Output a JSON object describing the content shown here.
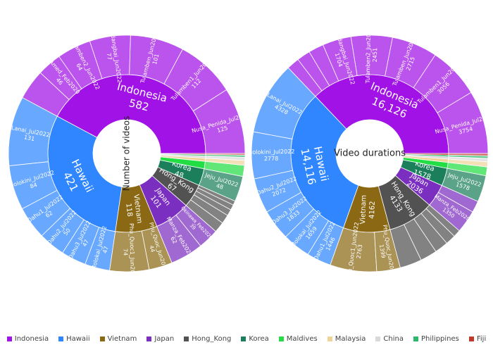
{
  "chart_data": [
    {
      "type": "sunburst",
      "center_label": "Number of videos",
      "countries": [
        {
          "name": "Indonesia",
          "value": 582,
          "value_label": "582",
          "children": [
            {
              "name": "Nusa_Penida_Jul2022",
              "value": 125
            },
            {
              "name": "Tulamben1_Jun2022",
              "value": 112
            },
            {
              "name": "Tulamben_Jun2022",
              "value": 101
            },
            {
              "name": "Padangbai_Jun2022",
              "value": 77
            },
            {
              "name": "Tulamben2_Jun2022",
              "value": 64
            },
            {
              "name": "Amed_Feb2020",
              "value": 46
            },
            {
              "name": "",
              "value": 57
            }
          ]
        },
        {
          "name": "Hawaii",
          "value": 421,
          "value_label": "421",
          "children": [
            {
              "name": "Lanai_Jul2022",
              "value": 131
            },
            {
              "name": "Molokini_Jul2022",
              "value": 84
            },
            {
              "name": "Oahu1_Jul2022",
              "value": 62
            },
            {
              "name": "Oahu2_Jul2022",
              "value": 50
            },
            {
              "name": "Oahu3_Jul2022",
              "value": 47
            },
            {
              "name": "Molokai_Jul2022",
              "value": 47
            }
          ]
        },
        {
          "name": "Vietnam",
          "value": 118,
          "value_label": "118",
          "children": [
            {
              "name": "Phu_Quoc1_Jun2022",
              "value": 74
            },
            {
              "name": "Phu_Quoc_Jun2022",
              "value": 44
            }
          ]
        },
        {
          "name": "Japan",
          "value": 101,
          "value_label": "101",
          "children": [
            {
              "name": "Manza_Feb2020",
              "value": 62
            },
            {
              "name": "Okinawa_Feb2020",
              "value": 39
            }
          ]
        },
        {
          "name": "Hong_Kong",
          "value": 67,
          "value_label": "67",
          "children": [
            {
              "name": "",
              "value": 20
            },
            {
              "name": "",
              "value": 17
            },
            {
              "name": "",
              "value": 12
            },
            {
              "name": "",
              "value": 10
            },
            {
              "name": "",
              "value": 8
            }
          ]
        },
        {
          "name": "Korea",
          "value": 48,
          "value_label": "48",
          "children": [
            {
              "name": "Jeju_Jul2022",
              "value": 48
            }
          ]
        },
        {
          "name": "Maldives",
          "value": 21,
          "value_label": "",
          "children": [
            {
              "name": "Maldives_Dec2019",
              "value": 21
            }
          ]
        },
        {
          "name": "Malaysia",
          "value": 9,
          "value_label": "",
          "children": [
            {
              "name": "",
              "value": 9
            }
          ]
        },
        {
          "name": "China",
          "value": 6,
          "value_label": "",
          "children": [
            {
              "name": "",
              "value": 6
            }
          ]
        },
        {
          "name": "Philippines",
          "value": 4,
          "value_label": "",
          "children": [
            {
              "name": "",
              "value": 4
            }
          ]
        },
        {
          "name": "Fiji",
          "value": 3,
          "value_label": "",
          "children": [
            {
              "name": "",
              "value": 3
            }
          ]
        }
      ]
    },
    {
      "type": "sunburst",
      "center_label": "Video durations",
      "countries": [
        {
          "name": "Indonesia",
          "value": 16126,
          "value_label": "16,126",
          "children": [
            {
              "name": "Nusa_Penida_Jul2022",
              "value": 3754
            },
            {
              "name": "Tulamben1_Jun2022",
              "value": 3056
            },
            {
              "name": "Tulamben_Jun2022",
              "value": 2715
            },
            {
              "name": "Tulamben2_Jun2022",
              "value": 2451
            },
            {
              "name": "Padangbai_Jun2022",
              "value": 1704
            },
            {
              "name": "",
              "value": 900
            },
            {
              "name": "",
              "value": 800
            },
            {
              "name": "",
              "value": 746
            }
          ]
        },
        {
          "name": "Hawaii",
          "value": 14116,
          "value_label": "14,116",
          "children": [
            {
              "name": "Lanai_Jul2022",
              "value": 4328
            },
            {
              "name": "Molokini_Jul2022",
              "value": 2778
            },
            {
              "name": "Oahu2_Jul2022",
              "value": 2072
            },
            {
              "name": "Oahu3_Jul2022",
              "value": 1833
            },
            {
              "name": "Molokai_Jul2022",
              "value": 1659
            },
            {
              "name": "Oahu1_Jul2022",
              "value": 1446
            }
          ]
        },
        {
          "name": "Vietnam",
          "value": 4162,
          "value_label": "4162",
          "children": [
            {
              "name": "Phu_Quoc1_Jun2022",
              "value": 2763
            },
            {
              "name": "Phu_Quoc_Jun2022",
              "value": 1399
            }
          ]
        },
        {
          "name": "Hong_Kong",
          "value": 4133,
          "value_label": "4133",
          "children": [
            {
              "name": "",
              "value": 1300
            },
            {
              "name": "",
              "value": 1000
            },
            {
              "name": "",
              "value": 800
            },
            {
              "name": "",
              "value": 600
            },
            {
              "name": "",
              "value": 433
            }
          ]
        },
        {
          "name": "Japan",
          "value": 2036,
          "value_label": "2036",
          "children": [
            {
              "name": "Manza_Feb2020",
              "value": 1350
            },
            {
              "name": "Okinawa_Feb2020",
              "value": 686
            }
          ]
        },
        {
          "name": "Korea",
          "value": 1578,
          "value_label": "1578",
          "children": [
            {
              "name": "Jeju_Jul2022",
              "value": 1578
            }
          ]
        },
        {
          "name": "Maldives",
          "value": 520,
          "value_label": "",
          "children": [
            {
              "name": "",
              "value": 520
            }
          ]
        },
        {
          "name": "Malaysia",
          "value": 300,
          "value_label": "",
          "children": [
            {
              "name": "",
              "value": 300
            }
          ]
        },
        {
          "name": "China",
          "value": 200,
          "value_label": "",
          "children": [
            {
              "name": "",
              "value": 200
            }
          ]
        },
        {
          "name": "Philippines",
          "value": 150,
          "value_label": "",
          "children": [
            {
              "name": "",
              "value": 150
            }
          ]
        },
        {
          "name": "Fiji",
          "value": 140,
          "value_label": "",
          "children": [
            {
              "name": "",
              "value": 140
            }
          ]
        }
      ]
    }
  ],
  "colors": {
    "Indonesia": "#a012e6",
    "Hawaii": "#2f86ff",
    "Vietnam": "#8b6914",
    "Japan": "#7b2fc0",
    "Hong_Kong": "#525252",
    "Korea": "#1a7f5a",
    "Maldives": "#22dd44",
    "Malaysia": "#efd49a",
    "China": "#d9d9d9",
    "Philippines": "#2ab86a",
    "Fiji": "#c0392b"
  },
  "legend": {
    "entries": [
      "Indonesia",
      "Hawaii",
      "Vietnam",
      "Japan",
      "Hong_Kong",
      "Korea",
      "Maldives",
      "Malaysia",
      "China",
      "Philippines",
      "Fiji"
    ]
  }
}
